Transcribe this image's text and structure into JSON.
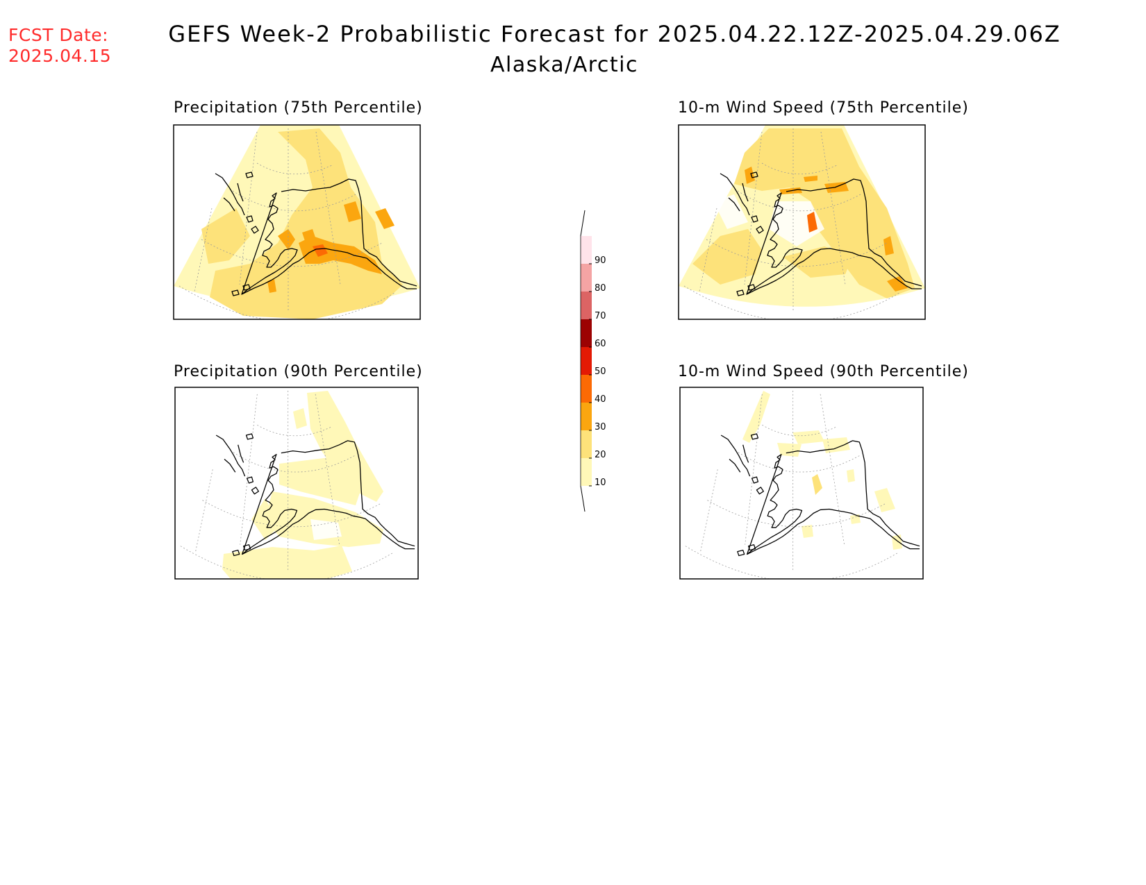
{
  "header": {
    "fcst_line1": "FCST Date:",
    "fcst_line2": "2025.04.15",
    "title": "GEFS Week-2 Probabilistic Forecast for 2025.04.22.12Z-2025.04.29.06Z",
    "region": "Alaska/Arctic"
  },
  "panels": [
    {
      "id": "precip-75",
      "title": "Precipitation (75th Percentile)"
    },
    {
      "id": "wind-75",
      "title": "10-m Wind Speed (75th Percentile)"
    },
    {
      "id": "precip-90",
      "title": "Precipitation (90th Percentile)"
    },
    {
      "id": "wind-90",
      "title": "10-m Wind Speed (90th Percentile)"
    }
  ],
  "colorbar": {
    "ticks": [
      "10",
      "20",
      "30",
      "40",
      "50",
      "60",
      "70",
      "80",
      "90"
    ],
    "colors": [
      "#fff8b8",
      "#fde27a",
      "#fba60f",
      "#fc6a04",
      "#e31a04",
      "#9c0202",
      "#dc6464",
      "#f4a4a4",
      "#ffe3ea"
    ]
  }
}
